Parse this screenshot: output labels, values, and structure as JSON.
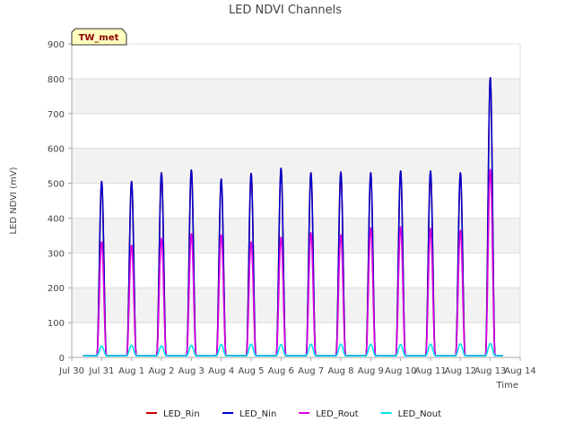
{
  "chart_data": {
    "type": "line",
    "title": "LED NDVI Channels",
    "xlabel": "Time",
    "ylabel": "LED NDVI (mV)",
    "badge": "TW_met",
    "ylim": [
      0,
      900
    ],
    "yticks": [
      0,
      100,
      200,
      300,
      400,
      500,
      600,
      700,
      800,
      900
    ],
    "xlim": [
      "Jul 30",
      "Aug 14"
    ],
    "xtick_labels": [
      "Jul 30",
      "Jul 31",
      "Aug 1",
      "Aug 2",
      "Aug 3",
      "Aug 4",
      "Aug 5",
      "Aug 6",
      "Aug 7",
      "Aug 8",
      "Aug 9",
      "Aug 10",
      "Aug 11",
      "Aug 12",
      "Aug 13",
      "Aug 14"
    ],
    "grid": true,
    "legend_position": "bottom",
    "daily_pattern": "zero at night, single midday peak per day",
    "peak_days": [
      "Jul 31",
      "Aug 1",
      "Aug 2",
      "Aug 3",
      "Aug 4",
      "Aug 5",
      "Aug 6",
      "Aug 7",
      "Aug 8",
      "Aug 9",
      "Aug 10",
      "Aug 11",
      "Aug 12",
      "Aug 13"
    ],
    "series": [
      {
        "name": "LED_Rin",
        "color": "#cc0000",
        "peaks": [
          505,
          505,
          530,
          538,
          512,
          528,
          543,
          530,
          532,
          530,
          535,
          535,
          530,
          803
        ]
      },
      {
        "name": "LED_Nin",
        "color": "#0000cc",
        "peaks": [
          505,
          505,
          530,
          538,
          512,
          528,
          543,
          530,
          532,
          530,
          535,
          535,
          530,
          803
        ]
      },
      {
        "name": "LED_Rout",
        "color": "#dd00dd",
        "peaks": [
          332,
          322,
          342,
          355,
          352,
          332,
          345,
          358,
          352,
          372,
          375,
          370,
          365,
          540
        ]
      },
      {
        "name": "LED_Nout",
        "color": "#00e5ee",
        "peaks": [
          33,
          35,
          33,
          35,
          37,
          38,
          37,
          38,
          38,
          38,
          37,
          38,
          39,
          40
        ]
      }
    ],
    "night_value": 5
  }
}
